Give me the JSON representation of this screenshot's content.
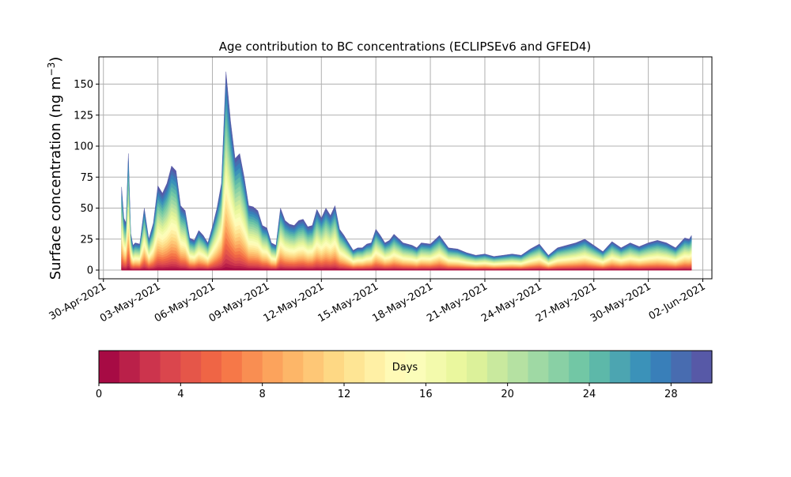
{
  "chart_data": {
    "type": "area",
    "title": "Age contribution to BC concentrations (ECLIPSEv6 and GFED4)",
    "ylabel_main": "Surface concentration (ng m",
    "ylabel_exp": "−3",
    "ylabel_close": ")",
    "xlim": [
      "2021-04-29T18:00",
      "2021-06-02T12:00"
    ],
    "ylim": [
      -7,
      172
    ],
    "grid": true,
    "x_ticks": [
      "2021-04-30",
      "2021-05-03",
      "2021-05-06",
      "2021-05-09",
      "2021-05-12",
      "2021-05-15",
      "2021-05-18",
      "2021-05-21",
      "2021-05-24",
      "2021-05-27",
      "2021-05-30",
      "2021-06-02"
    ],
    "x_tick_labels": [
      "30-Apr-2021",
      "03-May-2021",
      "06-May-2021",
      "09-May-2021",
      "12-May-2021",
      "15-May-2021",
      "18-May-2021",
      "21-May-2021",
      "24-May-2021",
      "27-May-2021",
      "30-May-2021",
      "02-Jun-2021"
    ],
    "y_ticks": [
      0,
      25,
      50,
      75,
      100,
      125,
      150
    ],
    "y_tick_labels": [
      "0",
      "25",
      "50",
      "75",
      "100",
      "125",
      "150"
    ],
    "age_bins_days": 30,
    "total": {
      "x": [
        "2021-05-01T00:00",
        "2021-05-01T03:00",
        "2021-05-01T06:00",
        "2021-05-01T09:00",
        "2021-05-01T12:00",
        "2021-05-01T15:00",
        "2021-05-01T18:00",
        "2021-05-02T00:00",
        "2021-05-02T06:00",
        "2021-05-02T12:00",
        "2021-05-02T18:00",
        "2021-05-03T00:00",
        "2021-05-03T06:00",
        "2021-05-03T12:00",
        "2021-05-03T18:00",
        "2021-05-04T00:00",
        "2021-05-04T06:00",
        "2021-05-04T12:00",
        "2021-05-04T18:00",
        "2021-05-05T00:00",
        "2021-05-05T06:00",
        "2021-05-05T12:00",
        "2021-05-05T18:00",
        "2021-05-06T00:00",
        "2021-05-06T06:00",
        "2021-05-06T12:00",
        "2021-05-06T18:00",
        "2021-05-07T00:00",
        "2021-05-07T06:00",
        "2021-05-07T12:00",
        "2021-05-07T18:00",
        "2021-05-08T00:00",
        "2021-05-08T06:00",
        "2021-05-08T12:00",
        "2021-05-08T18:00",
        "2021-05-09T00:00",
        "2021-05-09T06:00",
        "2021-05-09T12:00",
        "2021-05-09T18:00",
        "2021-05-10T00:00",
        "2021-05-10T06:00",
        "2021-05-10T12:00",
        "2021-05-10T18:00",
        "2021-05-11T00:00",
        "2021-05-11T06:00",
        "2021-05-11T12:00",
        "2021-05-11T18:00",
        "2021-05-12T00:00",
        "2021-05-12T06:00",
        "2021-05-12T12:00",
        "2021-05-12T18:00",
        "2021-05-13T00:00",
        "2021-05-13T06:00",
        "2021-05-13T12:00",
        "2021-05-13T18:00",
        "2021-05-14T00:00",
        "2021-05-14T06:00",
        "2021-05-14T12:00",
        "2021-05-14T18:00",
        "2021-05-15T00:00",
        "2021-05-15T06:00",
        "2021-05-15T12:00",
        "2021-05-15T18:00",
        "2021-05-16T00:00",
        "2021-05-16T12:00",
        "2021-05-17T00:00",
        "2021-05-17T06:00",
        "2021-05-17T12:00",
        "2021-05-18T00:00",
        "2021-05-18T12:00",
        "2021-05-19T00:00",
        "2021-05-19T12:00",
        "2021-05-20T00:00",
        "2021-05-20T12:00",
        "2021-05-21T00:00",
        "2021-05-21T12:00",
        "2021-05-22T00:00",
        "2021-05-22T12:00",
        "2021-05-23T00:00",
        "2021-05-23T12:00",
        "2021-05-24T00:00",
        "2021-05-24T12:00",
        "2021-05-25T00:00",
        "2021-05-25T12:00",
        "2021-05-26T00:00",
        "2021-05-26T12:00",
        "2021-05-27T00:00",
        "2021-05-27T12:00",
        "2021-05-28T00:00",
        "2021-05-28T12:00",
        "2021-05-29T00:00",
        "2021-05-29T12:00",
        "2021-05-30T00:00",
        "2021-05-30T12:00",
        "2021-05-31T00:00",
        "2021-05-31T12:00",
        "2021-06-01T00:00",
        "2021-06-01T06:00",
        "2021-06-01T09:00"
      ],
      "y": [
        67,
        42,
        38,
        94,
        30,
        20,
        22,
        21,
        50,
        25,
        38,
        68,
        62,
        70,
        84,
        80,
        52,
        48,
        26,
        24,
        32,
        28,
        22,
        35,
        50,
        70,
        160,
        120,
        90,
        94,
        75,
        52,
        51,
        48,
        36,
        34,
        22,
        20,
        50,
        40,
        37,
        36,
        40,
        41,
        35,
        36,
        49,
        42,
        50,
        44,
        52,
        33,
        28,
        22,
        16,
        18,
        18,
        21,
        22,
        33,
        28,
        22,
        24,
        29,
        22,
        20,
        18,
        22,
        21,
        28,
        18,
        17,
        14,
        12,
        13,
        11,
        12,
        13,
        12,
        17,
        21,
        12,
        18,
        20,
        22,
        25,
        20,
        15,
        23,
        18,
        22,
        19,
        22,
        24,
        22,
        18,
        26,
        25,
        28
      ]
    },
    "colorbar": {
      "label": "Days",
      "min": 0,
      "max": 30,
      "ticks": [
        0,
        4,
        8,
        12,
        16,
        20,
        24,
        28
      ],
      "tick_labels": [
        "0",
        "4",
        "8",
        "12",
        "16",
        "20",
        "24",
        "28"
      ],
      "colormap": "Spectral",
      "colors": [
        "#9e0142",
        "#d53e4f",
        "#f46d43",
        "#fdae61",
        "#fee08b",
        "#ffffbf",
        "#e6f598",
        "#abdda4",
        "#66c2a5",
        "#3288bd",
        "#5e4fa2"
      ]
    }
  }
}
